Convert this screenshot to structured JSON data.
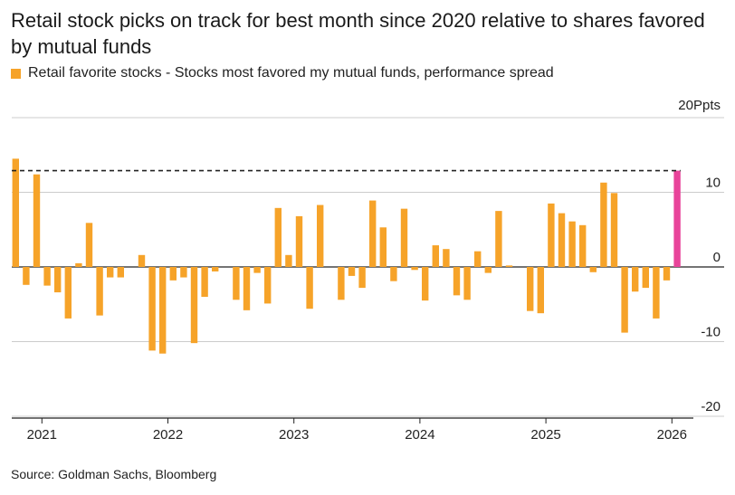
{
  "chart_data": {
    "type": "bar",
    "title": "Retail stock picks on track for best month since 2020 relative to shares favored by mutual funds",
    "legend_label": "Retail favorite stocks - Stocks most favored my mutual funds, performance spread",
    "y_unit_label": "20Ppts",
    "y_ticks": [
      {
        "value": 10,
        "label": "10"
      },
      {
        "value": 0,
        "label": "0"
      },
      {
        "value": -10,
        "label": "-10"
      },
      {
        "value": -20,
        "label": "-20"
      }
    ],
    "ylim": [
      -20.5,
      20
    ],
    "x_ticks": [
      {
        "label": "2021",
        "index": 2.5
      },
      {
        "label": "2022",
        "index": 14.5
      },
      {
        "label": "2023",
        "index": 26.5
      },
      {
        "label": "2024",
        "index": 38.5
      },
      {
        "label": "2025",
        "index": 50.5
      },
      {
        "label": "2026",
        "index": 62.5
      }
    ],
    "reference_line": {
      "value": 12.9,
      "style": "dashed"
    },
    "values": [
      14.5,
      -2.4,
      12.4,
      -2.5,
      -3.4,
      -6.9,
      0.5,
      5.9,
      -6.5,
      -1.4,
      -1.4,
      0,
      1.6,
      -11.2,
      -11.6,
      -1.8,
      -1.4,
      -10.2,
      -4.0,
      -0.6,
      0,
      -4.4,
      -5.8,
      -0.8,
      -4.9,
      7.9,
      1.6,
      6.8,
      -5.6,
      8.3,
      0,
      -4.4,
      -1.2,
      -2.8,
      8.9,
      5.3,
      -1.9,
      7.8,
      -0.4,
      -4.5,
      2.9,
      2.4,
      -3.8,
      -4.4,
      2.1,
      -0.8,
      7.5,
      0.2,
      0,
      -5.9,
      -6.2,
      8.5,
      7.2,
      6.1,
      5.6,
      -0.7,
      11.3,
      9.9,
      -8.8,
      -3.3,
      -2.8,
      -6.9,
      -1.8,
      12.9
    ],
    "highlight_index": 63,
    "colors": {
      "bar": "#f6a329",
      "highlight": "#e8449a",
      "grid": "#cccccc",
      "axis": "#222222",
      "reference": "#222222"
    },
    "source": "Source: Goldman Sachs, Bloomberg"
  }
}
